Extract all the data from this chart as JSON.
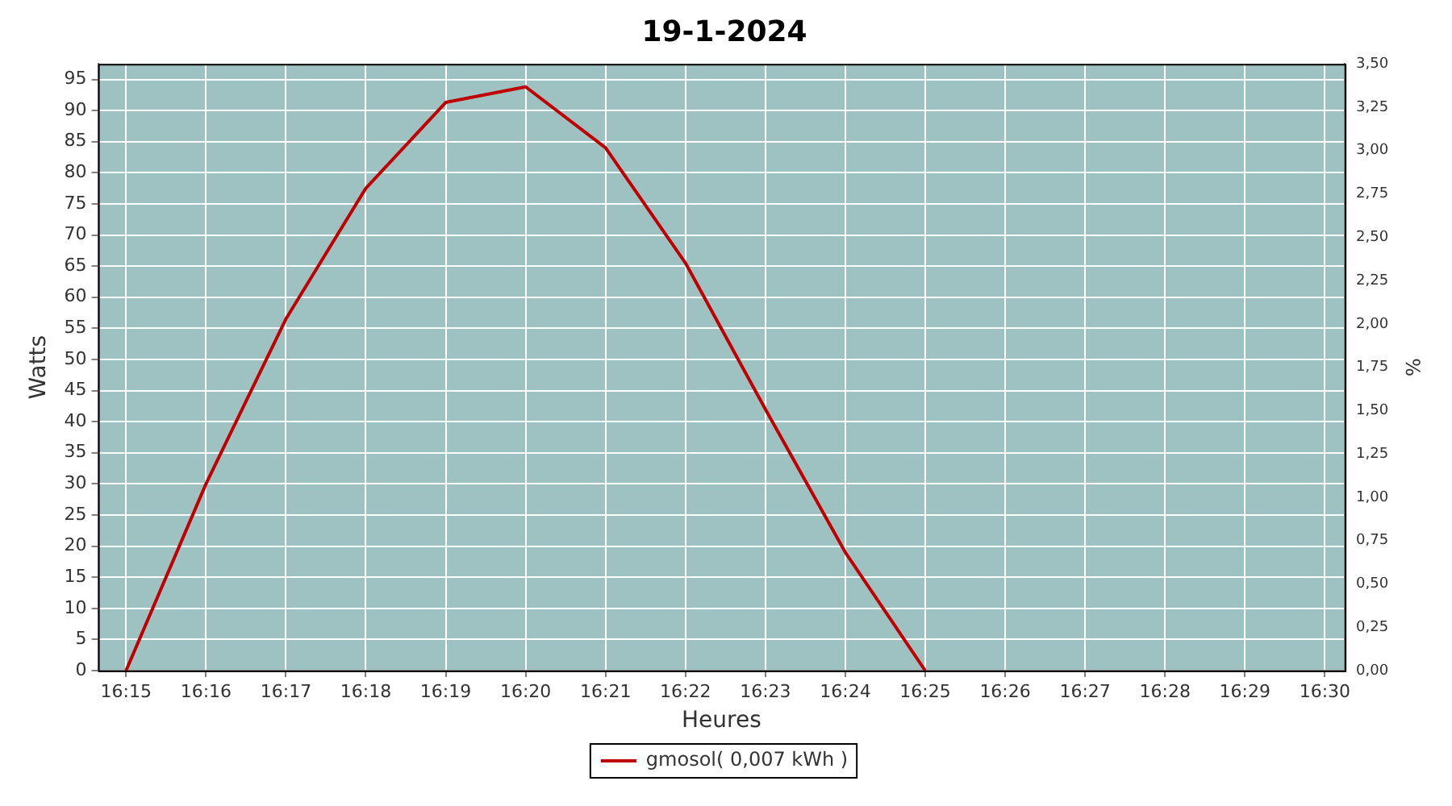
{
  "chart_data": {
    "type": "line",
    "title": "19-1-2024",
    "xlabel": "Heures",
    "ylabel": "Watts",
    "y2label": "%",
    "categories": [
      "16:15",
      "16:16",
      "16:17",
      "16:18",
      "16:19",
      "16:20",
      "16:21",
      "16:22",
      "16:23",
      "16:24",
      "16:25",
      "16:26",
      "16:27",
      "16:28",
      "16:29",
      "16:30"
    ],
    "series": [
      {
        "name": "gmosol( 0,007 kWh )",
        "color": "#c00000",
        "values": [
          0,
          30,
          56.5,
          77.5,
          91.3,
          93.8,
          84,
          65.5,
          42,
          19,
          0,
          null,
          null,
          null,
          null,
          null
        ]
      }
    ],
    "ylim": [
      0,
      97.5
    ],
    "yticks": [
      0,
      5,
      10,
      15,
      20,
      25,
      30,
      35,
      40,
      45,
      50,
      55,
      60,
      65,
      70,
      75,
      80,
      85,
      90,
      95
    ],
    "y2lim": [
      0,
      3.5
    ],
    "y2ticks": [
      {
        "value": 0,
        "label": "0,00"
      },
      {
        "value": 0.25,
        "label": "0,25"
      },
      {
        "value": 0.5,
        "label": "0,50"
      },
      {
        "value": 0.75,
        "label": "0,75"
      },
      {
        "value": 1,
        "label": "1,00"
      },
      {
        "value": 1.25,
        "label": "1,25"
      },
      {
        "value": 1.5,
        "label": "1,50"
      },
      {
        "value": 1.75,
        "label": "1,75"
      },
      {
        "value": 2,
        "label": "2,00"
      },
      {
        "value": 2.25,
        "label": "2,25"
      },
      {
        "value": 2.5,
        "label": "2,50"
      },
      {
        "value": 2.75,
        "label": "2,75"
      },
      {
        "value": 3,
        "label": "3,00"
      },
      {
        "value": 3.25,
        "label": "3,25"
      },
      {
        "value": 3.5,
        "label": "3,50"
      }
    ],
    "grid": true,
    "legend": "bottom",
    "marker": "none",
    "line_style": "solid"
  }
}
